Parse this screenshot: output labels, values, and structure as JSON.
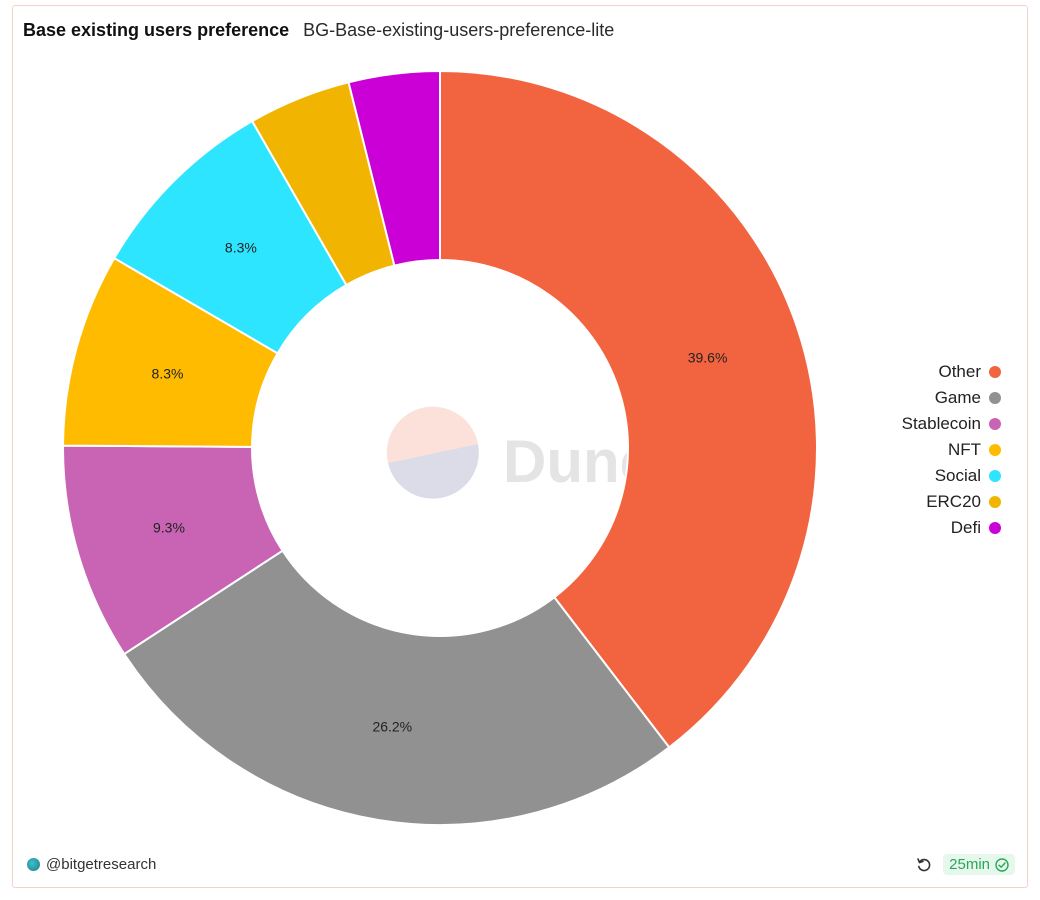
{
  "header": {
    "title": "Base existing users preference",
    "subtitle": "BG-Base-existing-users-preference-lite"
  },
  "watermark": {
    "text": "Dune"
  },
  "chart_data": {
    "type": "pie",
    "donut": true,
    "title": "Base existing users preference",
    "subtitle": "BG-Base-existing-users-preference-lite",
    "legend_position": "right",
    "slices": [
      {
        "name": "Other",
        "value": 39.6,
        "label": "39.6%",
        "color": "#F26440"
      },
      {
        "name": "Game",
        "value": 26.2,
        "label": "26.2%",
        "color": "#919191"
      },
      {
        "name": "Stablecoin",
        "value": 9.3,
        "label": "9.3%",
        "color": "#C964B4"
      },
      {
        "name": "NFT",
        "value": 8.3,
        "label": "8.3%",
        "color": "#FFBB00"
      },
      {
        "name": "Social",
        "value": 8.3,
        "label": "8.3%",
        "color": "#2DE5FF"
      },
      {
        "name": "ERC20",
        "value": 4.4,
        "label": "",
        "color": "#F1B400"
      },
      {
        "name": "Defi",
        "value": 3.9,
        "label": "",
        "color": "#CB00D6"
      }
    ]
  },
  "footer": {
    "author": "@bitgetresearch",
    "freshness": "25min",
    "icons": {
      "avatar": "author-avatar",
      "refresh": "refresh-icon",
      "check": "check-circle-icon"
    }
  }
}
